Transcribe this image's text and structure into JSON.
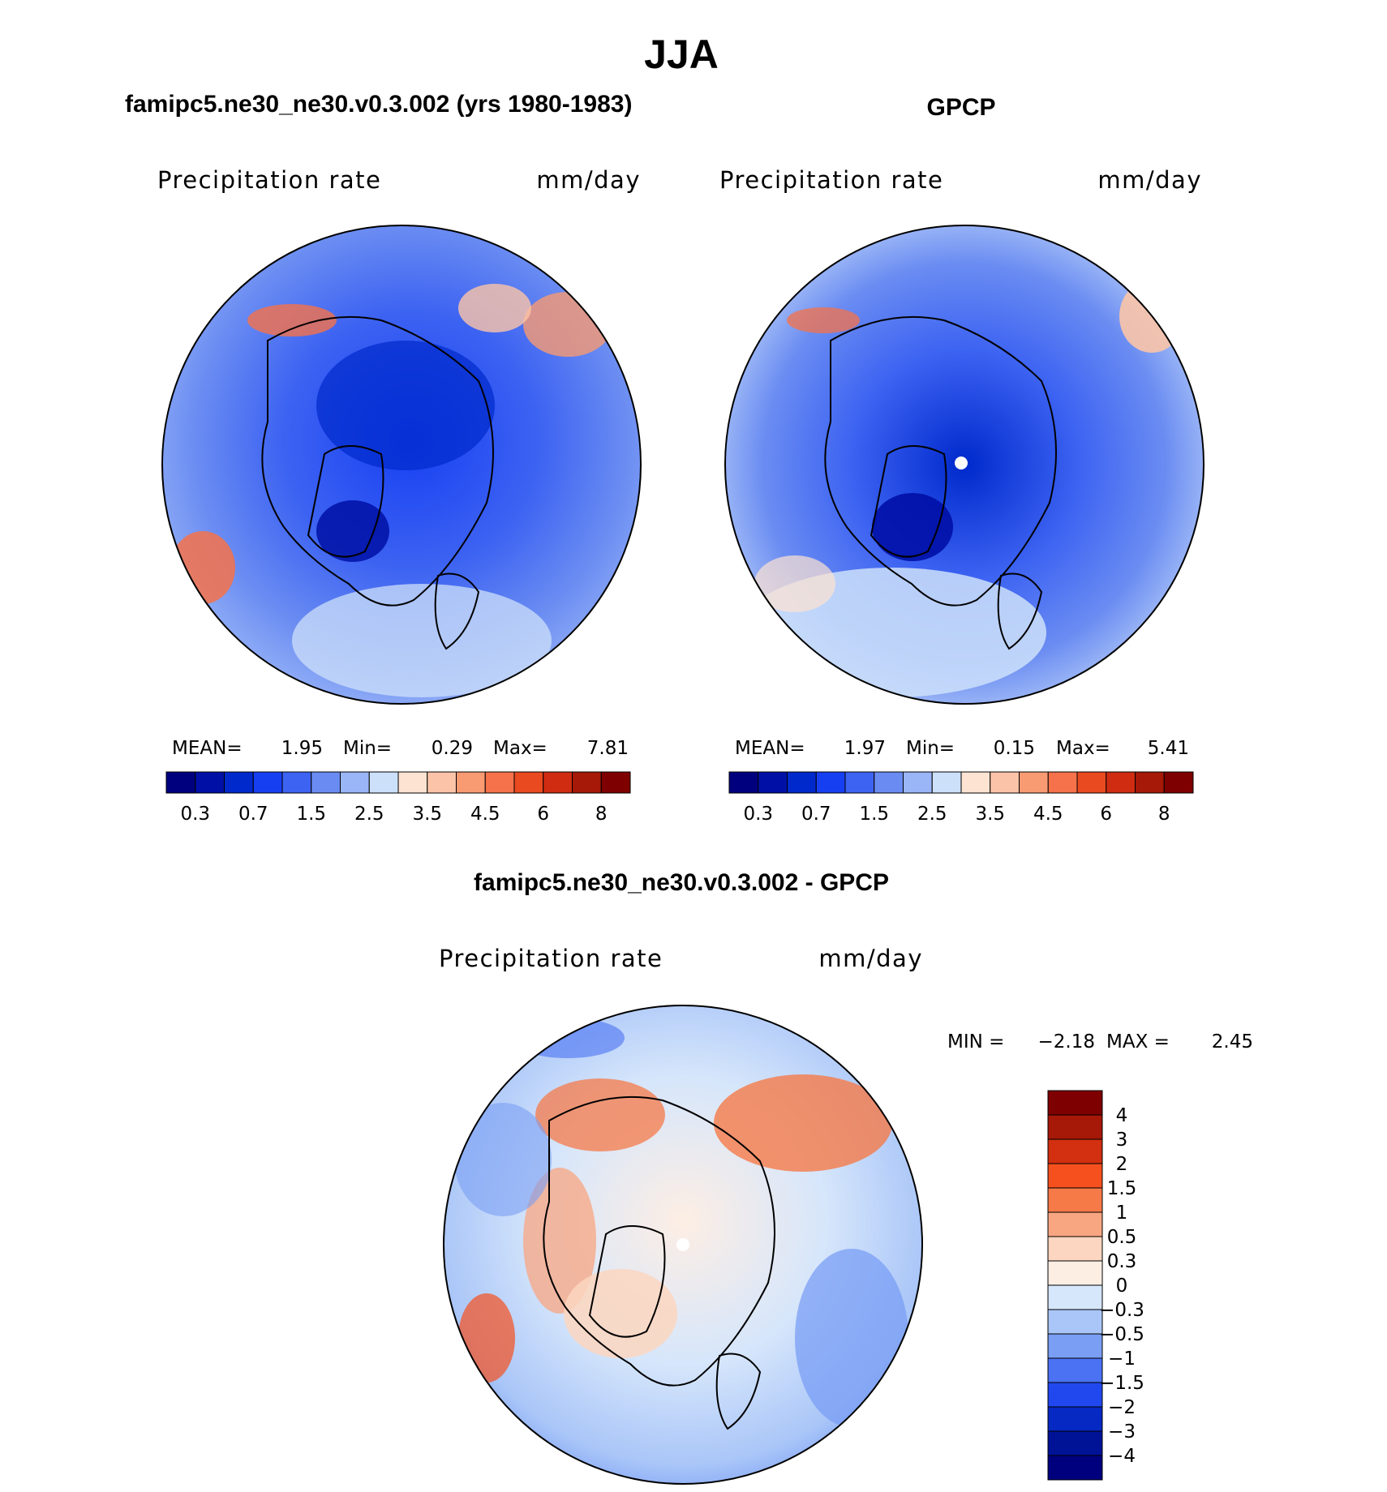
{
  "figure": {
    "title": "JJA",
    "panels": {
      "model": {
        "header": "famipc5.ne30_ne30.v0.3.002 (yrs 1980-1983)",
        "variable": "Precipitation rate",
        "units": "mm/day",
        "stats": {
          "mean_label": "MEAN=",
          "mean": "1.95",
          "min_label": "Min=",
          "min": "0.29",
          "max_label": "Max=",
          "max": "7.81"
        }
      },
      "obs": {
        "header": "GPCP",
        "variable": "Precipitation rate",
        "units": "mm/day",
        "stats": {
          "mean_label": "MEAN=",
          "mean": "1.97",
          "min_label": "Min=",
          "min": "0.15",
          "max_label": "Max=",
          "max": "5.41"
        }
      },
      "diff": {
        "header": "famipc5.ne30_ne30.v0.3.002 - GPCP",
        "variable": "Precipitation rate",
        "units": "mm/day",
        "stats": {
          "min_label": "MIN =",
          "min": "−2.18",
          "max_label": "MAX =",
          "max": "2.45"
        }
      }
    }
  },
  "chart_data": [
    {
      "type": "heatmap",
      "projection": "north polar stereographic",
      "title": "famipc5.ne30_ne30.v0.3.002 (yrs 1980-1983)",
      "variable": "Precipitation rate",
      "units": "mm/day",
      "mean": 1.95,
      "min": 0.29,
      "max": 7.81,
      "colorbar_ticks": [
        "0.3",
        "0.7",
        "1.5",
        "2.5",
        "3.5",
        "4.5",
        "6",
        "8"
      ],
      "colorbar_colors": [
        "#00007f",
        "#0010a6",
        "#0029cc",
        "#173ff2",
        "#3d63f2",
        "#6a8cf2",
        "#9ab6f7",
        "#cde0fa",
        "#fde3d2",
        "#fbc4a8",
        "#f89a72",
        "#f5724a",
        "#ea4a20",
        "#cf2c12",
        "#a61808",
        "#7f0000"
      ]
    },
    {
      "type": "heatmap",
      "projection": "north polar stereographic",
      "title": "GPCP",
      "variable": "Precipitation rate",
      "units": "mm/day",
      "mean": 1.97,
      "min": 0.15,
      "max": 5.41,
      "colorbar_ticks": [
        "0.3",
        "0.7",
        "1.5",
        "2.5",
        "3.5",
        "4.5",
        "6",
        "8"
      ],
      "colorbar_colors": [
        "#00007f",
        "#0010a6",
        "#0029cc",
        "#173ff2",
        "#3d63f2",
        "#6a8cf2",
        "#9ab6f7",
        "#cde0fa",
        "#fde3d2",
        "#fbc4a8",
        "#f89a72",
        "#f5724a",
        "#ea4a20",
        "#cf2c12",
        "#a61808",
        "#7f0000"
      ]
    },
    {
      "type": "heatmap",
      "projection": "north polar stereographic",
      "title": "famipc5.ne30_ne30.v0.3.002 - GPCP",
      "variable": "Precipitation rate",
      "units": "mm/day",
      "min": -2.18,
      "max": 2.45,
      "colorbar_ticks": [
        "4",
        "3",
        "2",
        "1.5",
        "1",
        "0.5",
        "0.3",
        "0",
        "−0.3",
        "−0.5",
        "−1",
        "−1.5",
        "−2",
        "−3",
        "−4"
      ],
      "colorbar_colors": [
        "#7f0000",
        "#a61808",
        "#d23010",
        "#f5501e",
        "#f57a48",
        "#f8a682",
        "#fcd6c0",
        "#fdeee4",
        "#d6e6fb",
        "#aac6f8",
        "#7a9ef4",
        "#4a72f2",
        "#2048ee",
        "#0629c4",
        "#001296",
        "#00007f"
      ]
    }
  ]
}
